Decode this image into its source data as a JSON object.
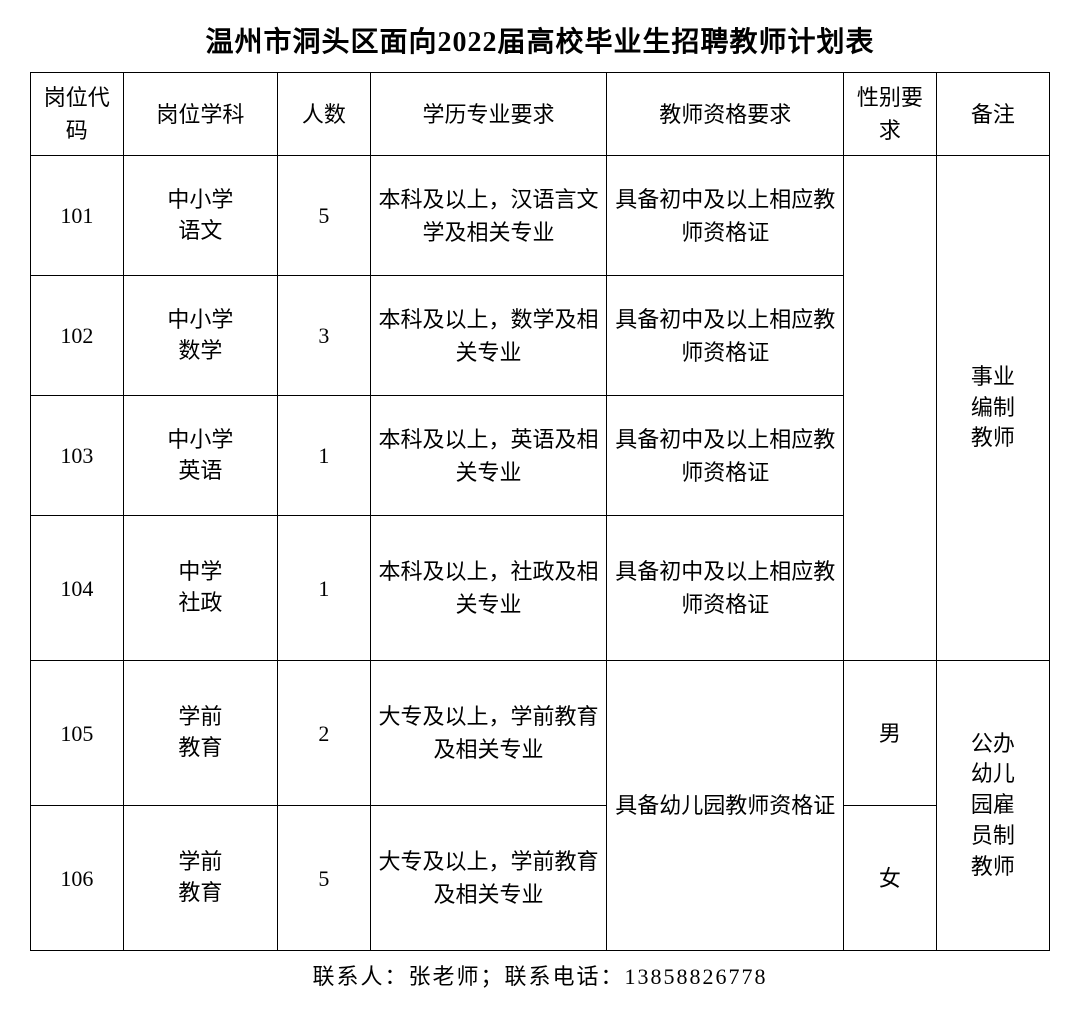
{
  "title": "温州市洞头区面向2022届高校毕业生招聘教师计划表",
  "headers": {
    "code": "岗位代码",
    "subject": "岗位学科",
    "count": "人数",
    "education": "学历专业要求",
    "qualification": "教师资格要求",
    "gender": "性别要求",
    "note": "备注"
  },
  "rows": [
    {
      "code": "101",
      "subject": "中小学语文",
      "count": "5",
      "education": "本科及以上，汉语言文学及相关专业",
      "qualification": "具备初中及以上相应教师资格证"
    },
    {
      "code": "102",
      "subject": "中小学数学",
      "count": "3",
      "education": "本科及以上，数学及相关专业",
      "qualification": "具备初中及以上相应教师资格证"
    },
    {
      "code": "103",
      "subject": "中小学英语",
      "count": "1",
      "education": "本科及以上，英语及相关专业",
      "qualification": "具备初中及以上相应教师资格证"
    },
    {
      "code": "104",
      "subject": "中学社政",
      "count": "1",
      "education": "本科及以上，社政及相关专业",
      "qualification": "具备初中及以上相应教师资格证"
    },
    {
      "code": "105",
      "subject": "学前教育",
      "count": "2",
      "education": "大专及以上，学前教育及相关专业",
      "gender": "男"
    },
    {
      "code": "106",
      "subject": "学前教育",
      "count": "5",
      "education": "大专及以上，学前教育及相关专业",
      "gender": "女"
    }
  ],
  "merged": {
    "qualification56": "具备幼儿园教师资格证",
    "note1234": "事业编制教师",
    "note56": "公办幼儿园雇员制教师"
  },
  "contact": "联系人：张老师；联系电话：13858826778"
}
